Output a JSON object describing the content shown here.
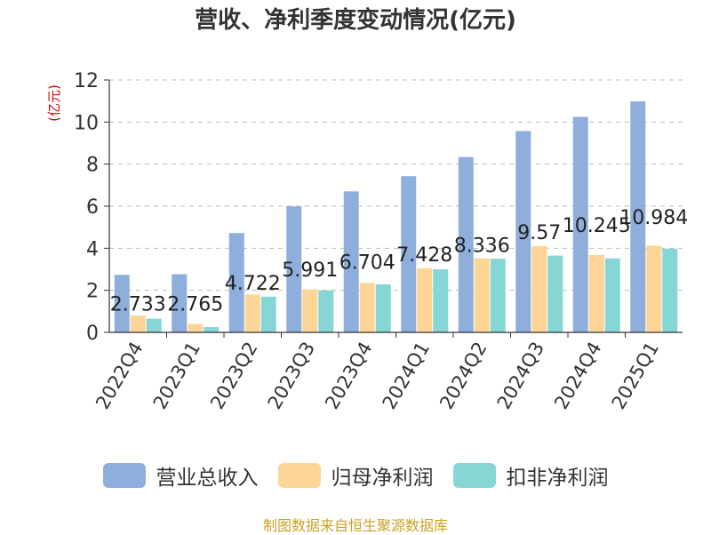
{
  "chart_data": {
    "type": "bar",
    "title": "营收、净利季度变动情况(亿元)",
    "ylabel": "(亿元)",
    "xlabel": "",
    "categories": [
      "2022Q4",
      "2023Q1",
      "2023Q2",
      "2023Q3",
      "2023Q4",
      "2024Q1",
      "2024Q2",
      "2024Q3",
      "2024Q4",
      "2025Q1"
    ],
    "ylim": [
      0,
      12
    ],
    "yticks": [
      0,
      2,
      4,
      6,
      8,
      10,
      12
    ],
    "grid": true,
    "legend_position": "bottom",
    "series": [
      {
        "name": "营业总收入",
        "color": "#8eaedc",
        "values": [
          2.733,
          2.765,
          4.722,
          5.991,
          6.704,
          7.428,
          8.336,
          9.57,
          10.245,
          10.984
        ],
        "labels": [
          "2.733",
          "2.765",
          "4.722",
          "5.991",
          "6.704",
          "7.428",
          "8.336",
          "9.57",
          "10.245",
          "10.984"
        ]
      },
      {
        "name": "归母净利润",
        "color": "#fdd596",
        "values": [
          0.8,
          0.4,
          1.8,
          2.05,
          2.35,
          3.05,
          3.52,
          4.1,
          3.68,
          4.12
        ]
      },
      {
        "name": "扣非净利润",
        "color": "#86d6d6",
        "values": [
          0.65,
          0.25,
          1.7,
          2.0,
          2.28,
          3.0,
          3.5,
          3.65,
          3.52,
          3.98
        ]
      }
    ]
  },
  "source_text": "制图数据来自恒生聚源数据库",
  "colors": {
    "axis": "#333333",
    "grid": "#bbbbbb",
    "ylabel": "#dd0000",
    "source": "#c9a227"
  }
}
